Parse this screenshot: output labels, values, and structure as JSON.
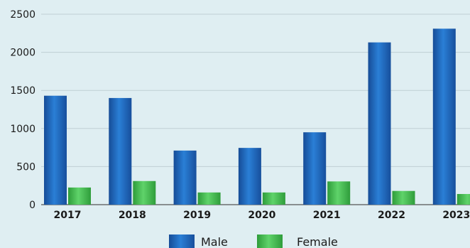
{
  "chart_data": {
    "type": "bar",
    "title": "",
    "xlabel": "",
    "ylabel": "",
    "categories": [
      "2017",
      "2018",
      "2019",
      "2020",
      "2021",
      "2022",
      "2023"
    ],
    "series": [
      {
        "name": "Male",
        "values": [
          1430,
          1400,
          710,
          745,
          950,
          2130,
          2310
        ]
      },
      {
        "name": "Female",
        "values": [
          225,
          310,
          160,
          160,
          305,
          180,
          140
        ]
      }
    ],
    "ylim": [
      0,
      2500
    ],
    "yticks": [
      0,
      500,
      1000,
      1500,
      2000,
      2500
    ],
    "grid": true,
    "legend": "bottom",
    "colors": {
      "male": "#1f5fb0",
      "female": "#3cb84a"
    }
  }
}
